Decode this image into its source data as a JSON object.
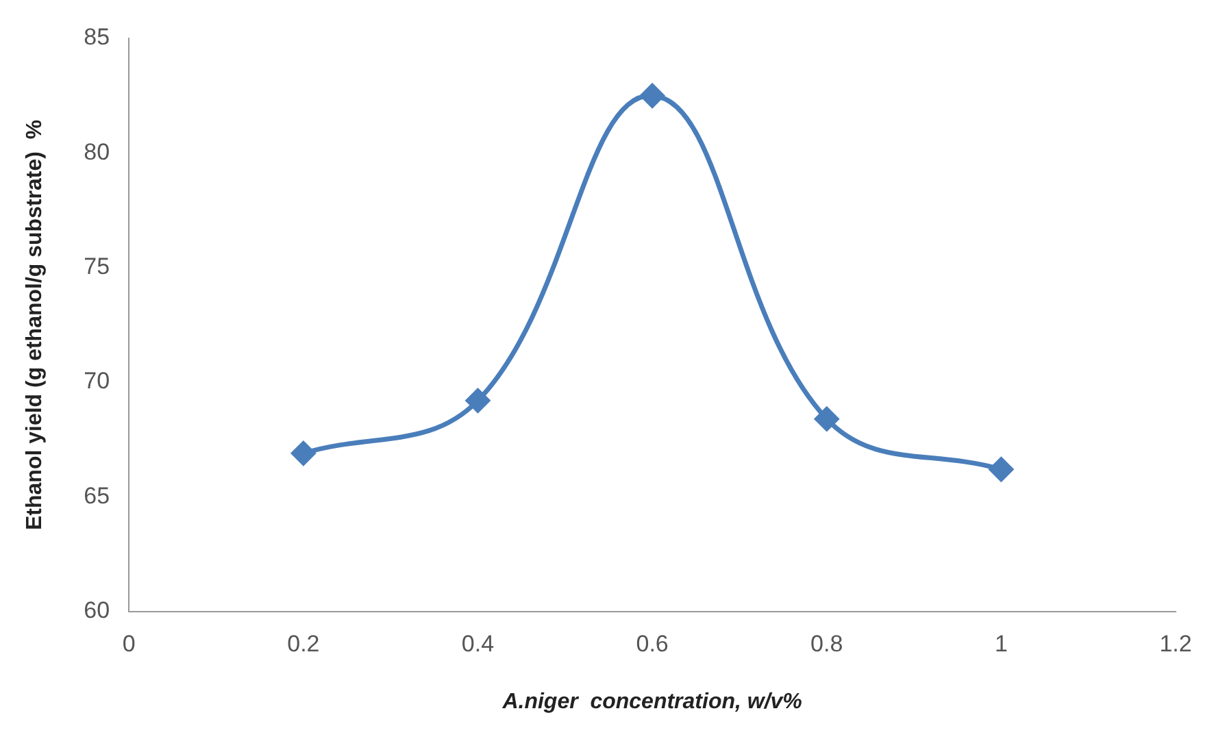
{
  "chart_data": {
    "type": "line",
    "xlabel": "A.niger  concentration, w/v%",
    "ylabel": "Ethanol yield (g ethanol/g substrate)  %",
    "x": [
      0.2,
      0.4,
      0.6,
      0.8,
      1.0
    ],
    "series": [
      {
        "color": "#4a7ebb",
        "values": [
          66.9,
          69.2,
          82.5,
          68.4,
          66.2
        ]
      }
    ],
    "xlim": [
      0,
      1.2
    ],
    "xticks": [
      0,
      0.2,
      0.4,
      0.6,
      0.8,
      1,
      1.2
    ],
    "ylim": [
      60,
      85
    ],
    "yticks": [
      60,
      65,
      70,
      75,
      80,
      85
    ],
    "grid": false,
    "legend": false,
    "marker": "diamond",
    "line_style": "solid"
  }
}
